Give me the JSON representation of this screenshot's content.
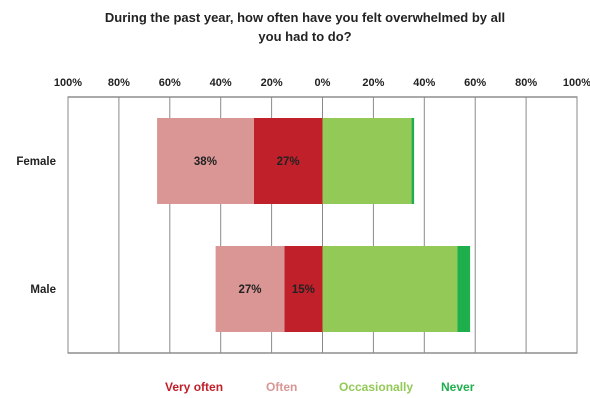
{
  "chart_data": {
    "type": "bar",
    "orientation": "horizontal",
    "stacking": "diverging",
    "title": "During the past year, how often have you felt overwhelmed by all you had to do?",
    "xlim": [
      -100,
      100
    ],
    "x_ticks": [
      -100,
      -80,
      -60,
      -40,
      -20,
      0,
      20,
      40,
      60,
      80,
      100
    ],
    "x_tick_labels": [
      "100%",
      "80%",
      "60%",
      "40%",
      "20%",
      "0%",
      "20%",
      "40%",
      "60%",
      "80%",
      "100%"
    ],
    "grid": true,
    "legend_position": "bottom",
    "categories": [
      "Female",
      "Male"
    ],
    "series": [
      {
        "name": "Very often",
        "side": "negative",
        "color": "#c0202a",
        "values": [
          27,
          15
        ],
        "labels": [
          "27%",
          "15%"
        ]
      },
      {
        "name": "Often",
        "side": "negative",
        "color": "#d99694",
        "values": [
          38,
          27
        ],
        "labels": [
          "38%",
          "27%"
        ]
      },
      {
        "name": "Occasionally",
        "side": "positive",
        "color": "#92c957",
        "values": [
          35,
          53
        ],
        "labels": [
          "",
          ""
        ]
      },
      {
        "name": "Never",
        "side": "positive",
        "color": "#1fae4c",
        "values": [
          1,
          5
        ],
        "labels": [
          "",
          ""
        ]
      }
    ]
  }
}
